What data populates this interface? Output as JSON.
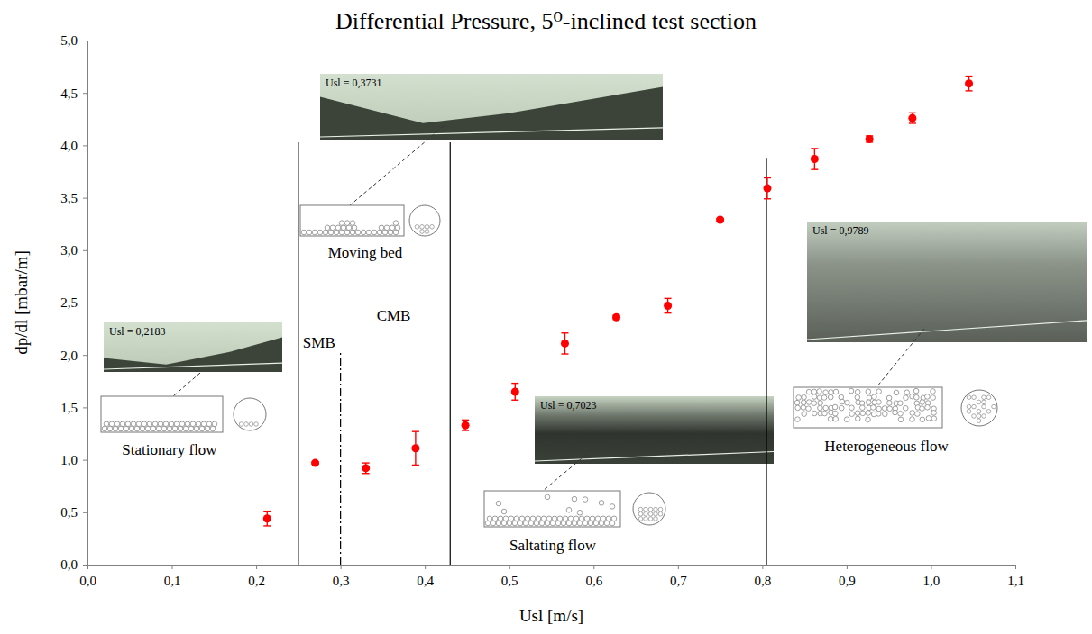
{
  "chart_data": {
    "type": "scatter",
    "title": "Differential Pressure, 5⁰-inclined test section",
    "x_label": "Usl [m/s]",
    "y_label": "dp/dl [mbar/m]",
    "x": [
      0.213,
      0.27,
      0.33,
      0.389,
      0.448,
      0.507,
      0.566,
      0.627,
      0.688,
      0.75,
      0.806,
      0.862,
      0.927,
      0.978,
      1.045
    ],
    "values": [
      0.44,
      0.97,
      0.92,
      1.11,
      1.33,
      1.65,
      2.11,
      2.36,
      2.47,
      3.29,
      3.59,
      3.87,
      4.06,
      4.26,
      4.59
    ],
    "errors": [
      0.07,
      0.01,
      0.05,
      0.16,
      0.05,
      0.08,
      0.1,
      0.02,
      0.07,
      0.01,
      0.1,
      0.1,
      0.03,
      0.05,
      0.07
    ],
    "color": "#ff0000",
    "marker": "circle",
    "grid": false,
    "xlim": [
      0,
      1.1
    ],
    "ylim": [
      0,
      5
    ],
    "xticks": [
      {
        "value": 0,
        "label": "0,0"
      },
      {
        "value": 0.1,
        "label": "0,1"
      },
      {
        "value": 0.2,
        "label": "0,2"
      },
      {
        "value": 0.3,
        "label": "0,3"
      },
      {
        "value": 0.4,
        "label": "0,4"
      },
      {
        "value": 0.5,
        "label": "0,5"
      },
      {
        "value": 0.6,
        "label": "0,6"
      },
      {
        "value": 0.7,
        "label": "0,7"
      },
      {
        "value": 0.8,
        "label": "0,8"
      },
      {
        "value": 0.9,
        "label": "0,9"
      },
      {
        "value": 1.0,
        "label": "1,0"
      },
      {
        "value": 1.1,
        "label": "1,1"
      }
    ],
    "yticks": [
      {
        "value": 0,
        "label": "0,0"
      },
      {
        "value": 0.5,
        "label": "0,5"
      },
      {
        "value": 1.0,
        "label": "1,0"
      },
      {
        "value": 1.5,
        "label": "1,5"
      },
      {
        "value": 2.0,
        "label": "2,0"
      },
      {
        "value": 2.5,
        "label": "2,5"
      },
      {
        "value": 3.0,
        "label": "3,0"
      },
      {
        "value": 3.5,
        "label": "3,5"
      },
      {
        "value": 4.0,
        "label": "4,0"
      },
      {
        "value": 4.5,
        "label": "4,5"
      },
      {
        "value": 5.0,
        "label": "5,0"
      }
    ],
    "boundaries": [
      {
        "x": 0.25,
        "top": 4.03,
        "line_style": "solid"
      },
      {
        "x": 0.3,
        "top": 2.04,
        "line_style": "dashdot"
      },
      {
        "x": 0.43,
        "top": 4.03,
        "line_style": "solid"
      },
      {
        "x": 0.805,
        "top": 3.88,
        "line_style": "solid"
      }
    ],
    "region_labels": [
      "SMB",
      "CMB"
    ],
    "annotations": [
      {
        "photo_label": "Usl = 0,2183",
        "regime": "Stationary flow"
      },
      {
        "photo_label": "Usl = 0,3731",
        "regime": "Moving bed"
      },
      {
        "photo_label": "Usl = 0,7023",
        "regime": "Saltating flow"
      },
      {
        "photo_label": "Usl = 0,9789",
        "regime": "Heterogeneous flow"
      }
    ]
  }
}
